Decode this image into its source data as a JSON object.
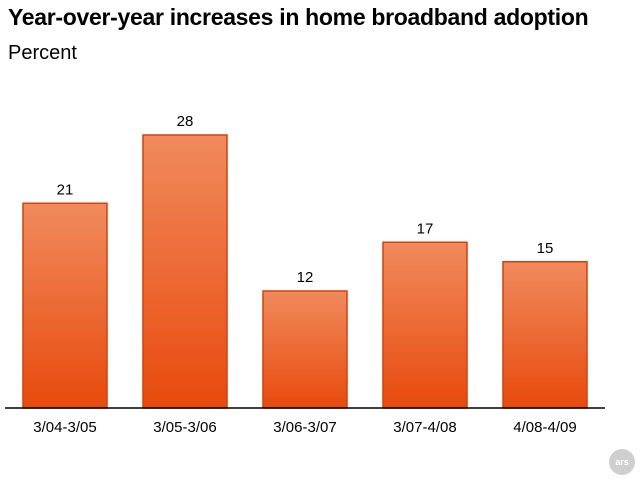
{
  "chart_data": {
    "type": "bar",
    "title": "Year-over-year increases in home broadband adoption",
    "subtitle": "Percent",
    "categories": [
      "3/04-3/05",
      "3/05-3/06",
      "3/06-3/07",
      "3/07-4/08",
      "4/08-4/09"
    ],
    "values": [
      21,
      28,
      12,
      17,
      15
    ],
    "ylim": [
      0,
      32
    ],
    "grid": false,
    "legend": "none",
    "data_labels": true,
    "colors": {
      "bar_top": "#f08a5d",
      "bar_bottom": "#e84a0c",
      "bar_stroke": "#d93f08",
      "baseline": "#000000"
    }
  },
  "watermark": "ars"
}
